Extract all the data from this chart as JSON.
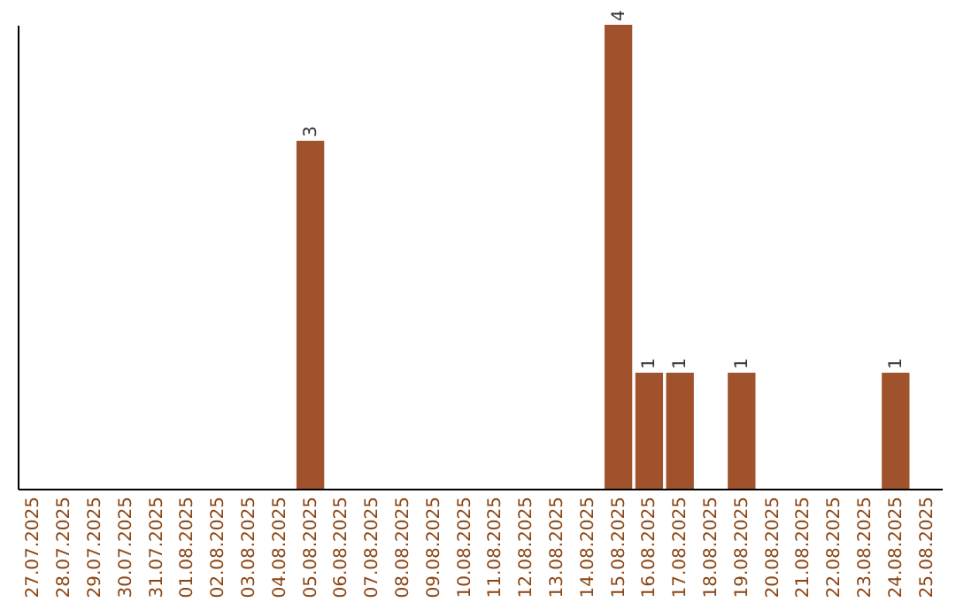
{
  "chart_data": {
    "type": "bar",
    "categories": [
      "27.07.2025",
      "28.07.2025",
      "29.07.2025",
      "30.07.2025",
      "31.07.2025",
      "01.08.2025",
      "02.08.2025",
      "03.08.2025",
      "04.08.2025",
      "05.08.2025",
      "06.08.2025",
      "07.08.2025",
      "08.08.2025",
      "09.08.2025",
      "10.08.2025",
      "11.08.2025",
      "12.08.2025",
      "13.08.2025",
      "14.08.2025",
      "15.08.2025",
      "16.08.2025",
      "17.08.2025",
      "18.08.2025",
      "19.08.2025",
      "20.08.2025",
      "21.08.2025",
      "22.08.2025",
      "23.08.2025",
      "24.08.2025",
      "25.08.2025"
    ],
    "values": [
      0,
      0,
      0,
      0,
      0,
      0,
      0,
      0,
      0,
      3,
      0,
      0,
      0,
      0,
      0,
      0,
      0,
      0,
      0,
      4,
      1,
      1,
      0,
      1,
      0,
      0,
      0,
      0,
      1,
      0
    ],
    "value_labels": [
      null,
      null,
      null,
      null,
      null,
      null,
      null,
      null,
      null,
      "3",
      null,
      null,
      null,
      null,
      null,
      null,
      null,
      null,
      null,
      "4",
      "1",
      "1",
      null,
      "1",
      null,
      null,
      null,
      null,
      "1",
      null
    ],
    "color": "#a0522d",
    "grid": false,
    "tick_labels": "x"
  }
}
